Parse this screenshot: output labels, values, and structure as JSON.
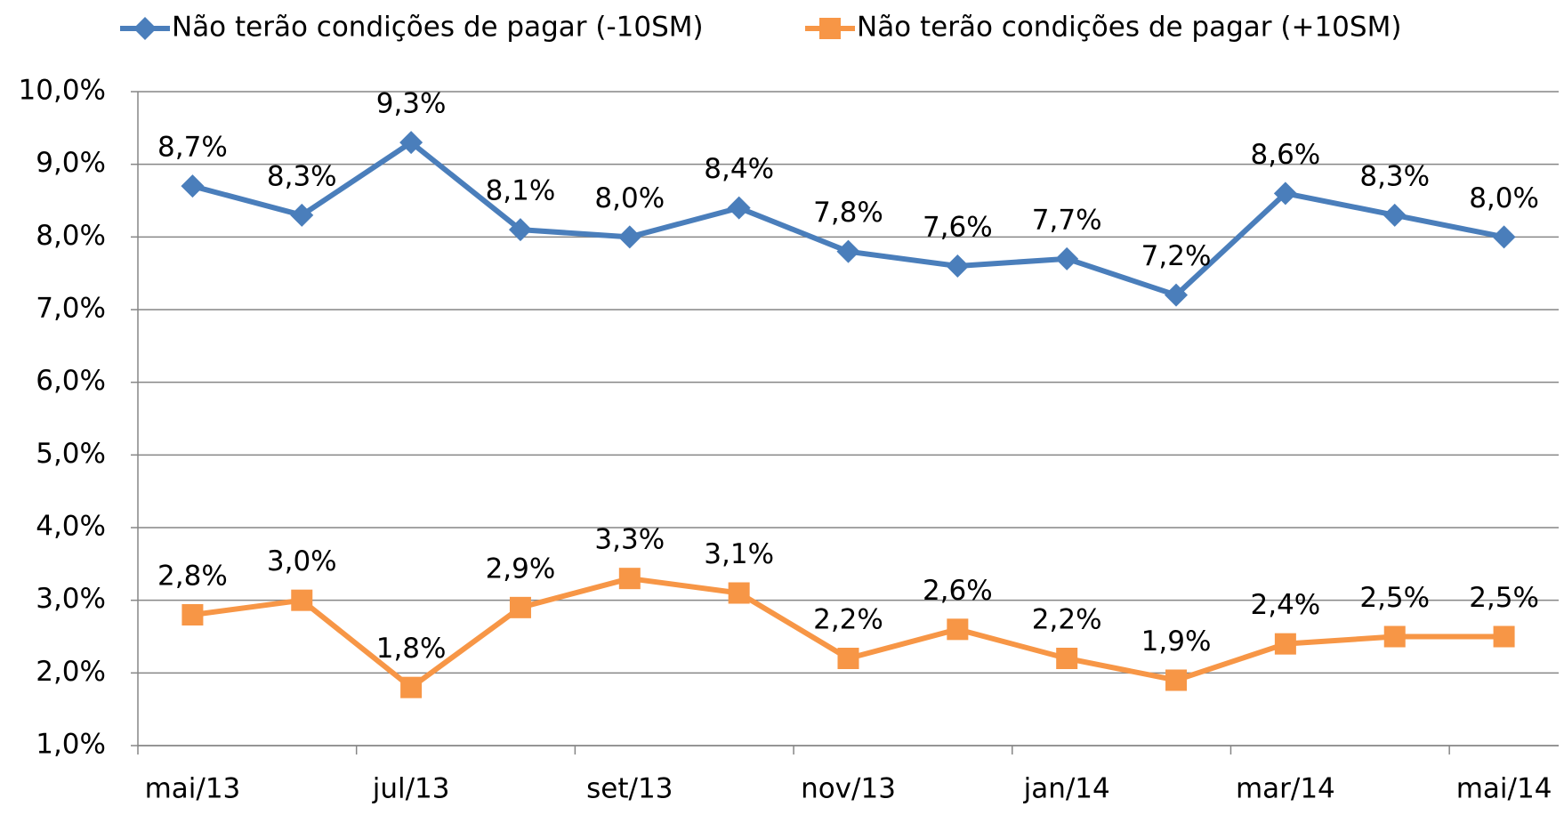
{
  "chart_data": {
    "type": "line",
    "categories": [
      "mai/13",
      null,
      "jul/13",
      null,
      "set/13",
      null,
      "nov/13",
      null,
      "jan/14",
      null,
      "mar/14",
      null,
      "mai/14"
    ],
    "series": [
      {
        "name": "Não terão condições de pagar (-10SM)",
        "color": "#4a7ebb",
        "marker": "diamond",
        "values": [
          8.7,
          8.3,
          9.3,
          8.1,
          8.0,
          8.4,
          7.8,
          7.6,
          7.7,
          7.2,
          8.6,
          8.3,
          8.0
        ],
        "value_labels": [
          "8,7%",
          "8,3%",
          "9,3%",
          "8,1%",
          "8,0%",
          "8,4%",
          "7,8%",
          "7,6%",
          "7,7%",
          "7,2%",
          "8,6%",
          "8,3%",
          "8,0%"
        ]
      },
      {
        "name": "Não terão condições de pagar (+10SM)",
        "color": "#f79646",
        "marker": "square",
        "values": [
          2.8,
          3.0,
          1.8,
          2.9,
          3.3,
          3.1,
          2.2,
          2.6,
          2.2,
          1.9,
          2.4,
          2.5,
          2.5
        ],
        "value_labels": [
          "2,8%",
          "3,0%",
          "1,8%",
          "2,9%",
          "3,3%",
          "3,1%",
          "2,2%",
          "2,6%",
          "2,2%",
          "1,9%",
          "2,4%",
          "2,5%",
          "2,5%"
        ]
      }
    ],
    "ylim": [
      1,
      10
    ],
    "yticks": [
      {
        "value": 1,
        "label": "1,0%"
      },
      {
        "value": 2,
        "label": "2,0%"
      },
      {
        "value": 3,
        "label": "3,0%"
      },
      {
        "value": 4,
        "label": "4,0%"
      },
      {
        "value": 5,
        "label": "5,0%"
      },
      {
        "value": 6,
        "label": "6,0%"
      },
      {
        "value": 7,
        "label": "7,0%"
      },
      {
        "value": 8,
        "label": "8,0%"
      },
      {
        "value": 9,
        "label": "9,0%"
      },
      {
        "value": 10,
        "label": "10,0%"
      }
    ],
    "grid": true,
    "legend": "top"
  }
}
